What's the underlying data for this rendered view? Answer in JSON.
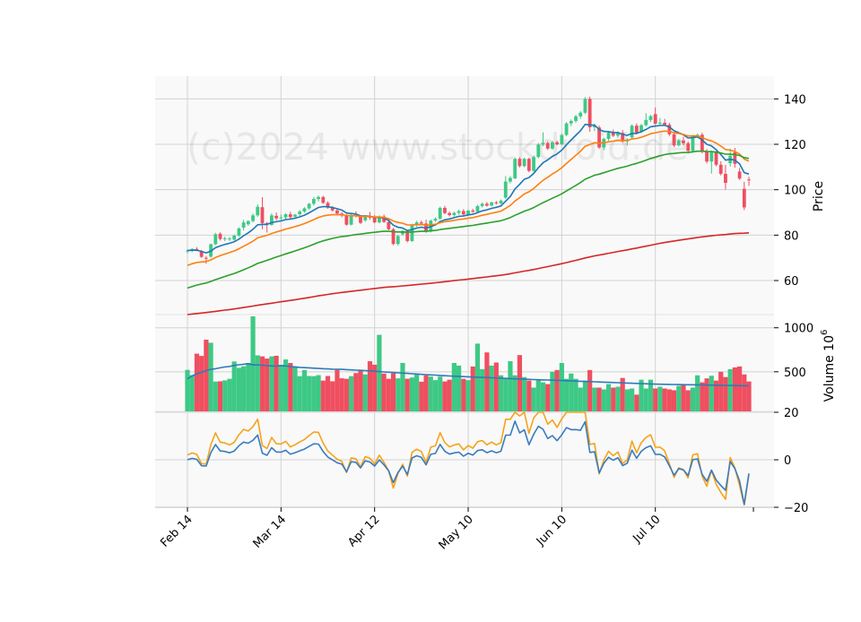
{
  "watermark": "(c)2024 www.stockdroid.de",
  "chart_data": {
    "type": "candlestick",
    "x_tick_labels": [
      "Feb 14",
      "Mar 14",
      "Apr 12",
      "May 10",
      "Jun 10",
      "Jul 10"
    ],
    "x_tick_index": [
      0,
      20,
      40,
      60,
      80,
      100
    ],
    "n_days": 121,
    "price_panel": {
      "ylabel": "Price",
      "ylim": [
        45,
        150
      ],
      "yticks": [
        60,
        80,
        100,
        120,
        140
      ],
      "ohlc": [
        [
          72.8,
          73.8,
          71.9,
          73.2
        ],
        [
          73.2,
          74.3,
          72.5,
          73.9
        ],
        [
          73.9,
          74.7,
          72.9,
          73.5
        ],
        [
          72.9,
          73.5,
          70.0,
          70.4
        ],
        [
          70.0,
          70.8,
          67.4,
          69.9
        ],
        [
          70.5,
          76.3,
          70.0,
          76.0
        ],
        [
          76.0,
          81.0,
          75.5,
          80.4
        ],
        [
          80.6,
          81.2,
          77.6,
          78.3
        ],
        [
          78.3,
          79.3,
          77.3,
          78.6
        ],
        [
          78.3,
          79.1,
          77.4,
          78.5
        ],
        [
          78.0,
          80.3,
          77.6,
          79.8
        ],
        [
          79.8,
          83.5,
          79.2,
          82.9
        ],
        [
          83.3,
          86.7,
          82.1,
          85.6
        ],
        [
          84.8,
          86.5,
          84.1,
          86.2
        ],
        [
          86.2,
          89.5,
          85.6,
          88.7
        ],
        [
          88.7,
          93.5,
          88.1,
          92.5
        ],
        [
          92.3,
          96.7,
          82.6,
          85.3
        ],
        [
          85.3,
          85.8,
          81.1,
          84.7
        ],
        [
          84.5,
          89.6,
          84.1,
          88.7
        ],
        [
          88.5,
          90.0,
          86.5,
          87.4
        ],
        [
          87.7,
          89.1,
          86.6,
          87.8
        ],
        [
          87.8,
          89.6,
          86.9,
          89.2
        ],
        [
          89.2,
          90.3,
          87.3,
          87.9
        ],
        [
          88.1,
          89.4,
          87.7,
          89.0
        ],
        [
          89.2,
          91.1,
          88.4,
          90.4
        ],
        [
          90.4,
          92.3,
          89.8,
          91.8
        ],
        [
          91.8,
          94.2,
          91.1,
          93.8
        ],
        [
          93.8,
          96.8,
          93.0,
          95.9
        ],
        [
          95.9,
          97.4,
          94.8,
          96.8
        ],
        [
          96.8,
          97.3,
          93.8,
          94.2
        ],
        [
          94.2,
          94.9,
          91.6,
          92.1
        ],
        [
          92.1,
          92.8,
          90.4,
          90.9
        ],
        [
          90.9,
          91.6,
          89.0,
          89.5
        ],
        [
          89.5,
          90.1,
          87.9,
          88.6
        ],
        [
          88.6,
          89.3,
          84.1,
          84.6
        ],
        [
          84.6,
          89.2,
          84.3,
          88.7
        ],
        [
          88.7,
          90.5,
          87.8,
          88.3
        ],
        [
          88.3,
          88.8,
          84.9,
          85.4
        ],
        [
          86.5,
          88.8,
          85.9,
          88.3
        ],
        [
          88.3,
          90.2,
          86.7,
          87.7
        ],
        [
          87.7,
          88.9,
          85.2,
          85.6
        ],
        [
          85.6,
          88.7,
          85.1,
          88.2
        ],
        [
          88.2,
          89.1,
          85.4,
          85.8
        ],
        [
          85.8,
          86.3,
          82.1,
          82.6
        ],
        [
          82.6,
          83.2,
          75.6,
          76.1
        ],
        [
          76.1,
          80.1,
          75.4,
          79.6
        ],
        [
          80.4,
          82.3,
          79.8,
          81.8
        ],
        [
          81.8,
          82.4,
          76.8,
          77.4
        ],
        [
          77.4,
          85.0,
          77.0,
          84.4
        ],
        [
          84.4,
          86.3,
          83.6,
          85.6
        ],
        [
          85.6,
          86.4,
          84.5,
          85.1
        ],
        [
          85.1,
          86.8,
          81.0,
          81.6
        ],
        [
          81.6,
          86.9,
          81.2,
          86.4
        ],
        [
          86.4,
          87.8,
          85.8,
          87.2
        ],
        [
          87.2,
          92.6,
          86.8,
          92.0
        ],
        [
          92.0,
          92.9,
          89.2,
          89.7
        ],
        [
          89.7,
          90.4,
          88.2,
          88.8
        ],
        [
          88.8,
          90.3,
          88.1,
          89.8
        ],
        [
          89.8,
          91.2,
          89.0,
          90.6
        ],
        [
          90.6,
          91.4,
          88.6,
          89.1
        ],
        [
          89.1,
          91.3,
          88.5,
          90.8
        ],
        [
          90.8,
          91.6,
          89.8,
          90.3
        ],
        [
          90.3,
          93.4,
          89.9,
          92.8
        ],
        [
          92.8,
          94.4,
          92.2,
          93.8
        ],
        [
          93.8,
          94.6,
          92.5,
          93.0
        ],
        [
          93.0,
          94.8,
          92.6,
          94.4
        ],
        [
          94.4,
          95.1,
          93.4,
          94.0
        ],
        [
          94.0,
          95.7,
          93.6,
          95.2
        ],
        [
          96.5,
          106.0,
          96.0,
          103.6
        ],
        [
          103.6,
          106.0,
          102.8,
          105.2
        ],
        [
          105.0,
          114.3,
          104.6,
          113.6
        ],
        [
          113.6,
          114.3,
          109.8,
          110.4
        ],
        [
          110.4,
          114.1,
          109.9,
          113.6
        ],
        [
          113.6,
          114.1,
          107.7,
          108.3
        ],
        [
          108.3,
          115.1,
          107.9,
          114.4
        ],
        [
          114.4,
          120.6,
          113.8,
          119.9
        ],
        [
          119.9,
          125.3,
          119.2,
          120.6
        ],
        [
          120.6,
          121.3,
          117.5,
          118.1
        ],
        [
          118.1,
          121.5,
          117.6,
          120.9
        ],
        [
          120.9,
          121.6,
          119.5,
          120.0
        ],
        [
          120.0,
          124.7,
          119.4,
          124.1
        ],
        [
          124.1,
          129.8,
          123.6,
          129.2
        ],
        [
          129.2,
          131.0,
          128.0,
          130.3
        ],
        [
          130.3,
          133.0,
          129.5,
          132.3
        ],
        [
          132.3,
          134.6,
          131.3,
          133.9
        ],
        [
          133.9,
          140.8,
          133.3,
          140.0
        ],
        [
          140.0,
          141.0,
          125.5,
          127.5
        ],
        [
          127.5,
          129.0,
          125.8,
          128.3
        ],
        [
          127.4,
          128.3,
          118.0,
          118.6
        ],
        [
          118.6,
          123.0,
          117.4,
          122.4
        ],
        [
          122.4,
          125.9,
          121.6,
          125.1
        ],
        [
          125.1,
          126.5,
          123.2,
          123.8
        ],
        [
          123.8,
          125.7,
          122.9,
          125.0
        ],
        [
          125.0,
          126.3,
          120.7,
          121.3
        ],
        [
          121.3,
          122.6,
          119.5,
          122.1
        ],
        [
          123.0,
          128.8,
          122.3,
          128.2
        ],
        [
          128.2,
          129.2,
          124.3,
          124.9
        ],
        [
          125.6,
          129.0,
          124.9,
          128.4
        ],
        [
          128.4,
          133.7,
          127.8,
          130.7
        ],
        [
          130.7,
          133.0,
          129.8,
          132.4
        ],
        [
          133.3,
          136.2,
          128.5,
          129.1
        ],
        [
          129.1,
          131.6,
          128.6,
          129.5
        ],
        [
          129.5,
          131.2,
          128.1,
          128.6
        ],
        [
          128.6,
          129.5,
          123.7,
          124.4
        ],
        [
          124.4,
          125.0,
          118.8,
          119.5
        ],
        [
          119.5,
          122.3,
          119.1,
          121.7
        ],
        [
          121.7,
          123.3,
          119.6,
          120.5
        ],
        [
          120.5,
          121.3,
          115.9,
          117.1
        ],
        [
          117.1,
          124.2,
          116.6,
          123.8
        ],
        [
          123.8,
          124.7,
          123.1,
          124.2
        ],
        [
          124.2,
          125.1,
          116.0,
          116.7
        ],
        [
          116.7,
          117.9,
          111.6,
          112.4
        ],
        [
          112.4,
          117.2,
          107.1,
          116.4
        ],
        [
          116.4,
          117.0,
          110.3,
          111.0
        ],
        [
          111.0,
          112.5,
          106.3,
          107.0
        ],
        [
          107.0,
          110.9,
          100.1,
          103.0
        ],
        [
          111.7,
          118.1,
          110.2,
          115.0
        ],
        [
          116.5,
          118.4,
          109.7,
          111.4
        ],
        [
          108.0,
          109.6,
          104.3,
          104.9
        ],
        [
          100.4,
          103.5,
          91.0,
          92.2
        ],
        [
          104.5,
          105.7,
          101.7,
          104.3
        ]
      ]
    },
    "volume_panel": {
      "ylabel": "Volume  10^6",
      "ylim": [
        50,
        1150
      ],
      "yticks": [
        500,
        1000
      ],
      "volumes": [
        522,
        463,
        706,
        680,
        865,
        830,
        389,
        392,
        402,
        420,
        617,
        545,
        562,
        600,
        1130,
        687,
        675,
        650,
        675,
        682,
        580,
        640,
        600,
        562,
        450,
        520,
        452,
        450,
        462,
        400,
        452,
        392,
        522,
        426,
        420,
        450,
        485,
        517,
        470,
        620,
        580,
        920,
        480,
        420,
        484,
        425,
        600,
        421,
        435,
        480,
        387,
        460,
        445,
        405,
        445,
        390,
        410,
        600,
        570,
        420,
        405,
        560,
        820,
        530,
        720,
        570,
        605,
        460,
        420,
        620,
        460,
        690,
        440,
        400,
        320,
        404,
        380,
        360,
        500,
        520,
        600,
        420,
        480,
        420,
        320,
        400,
        520,
        320,
        320,
        300,
        360,
        320,
        330,
        430,
        300,
        310,
        240,
        410,
        310,
        410,
        310,
        330,
        310,
        300,
        290,
        340,
        350,
        290,
        320,
        460,
        380,
        425,
        455,
        400,
        500,
        440,
        530,
        550,
        560,
        470,
        390
      ],
      "moving_average": [
        420,
        452,
        478,
        494,
        514,
        528,
        535,
        545,
        555,
        560,
        572,
        580,
        586,
        592,
        578,
        578,
        575,
        569,
        566,
        564,
        568,
        566,
        560,
        555,
        550,
        547,
        545,
        541,
        538,
        535,
        533,
        530,
        529,
        528,
        525,
        522,
        519,
        516,
        513,
        510,
        506,
        502,
        498,
        495,
        492,
        488,
        485,
        482,
        478,
        475,
        471,
        468,
        465,
        462,
        458,
        455,
        452,
        450,
        448,
        445,
        443,
        440,
        438,
        436,
        434,
        432,
        430,
        428,
        425,
        423,
        420,
        418,
        416,
        414,
        412,
        410,
        408,
        406,
        404,
        402,
        400,
        398,
        396,
        394,
        392,
        390,
        388,
        386,
        384,
        382,
        380,
        378,
        376,
        374,
        372,
        370,
        368,
        366,
        364,
        362,
        360,
        359,
        358,
        357,
        356,
        355,
        354,
        353,
        352,
        351,
        350,
        349,
        348,
        347,
        346,
        345,
        344,
        343,
        342,
        341,
        340
      ]
    },
    "indicator_panel": {
      "ylim": [
        -20,
        20
      ],
      "yticks": [
        -20,
        0,
        20
      ]
    }
  }
}
